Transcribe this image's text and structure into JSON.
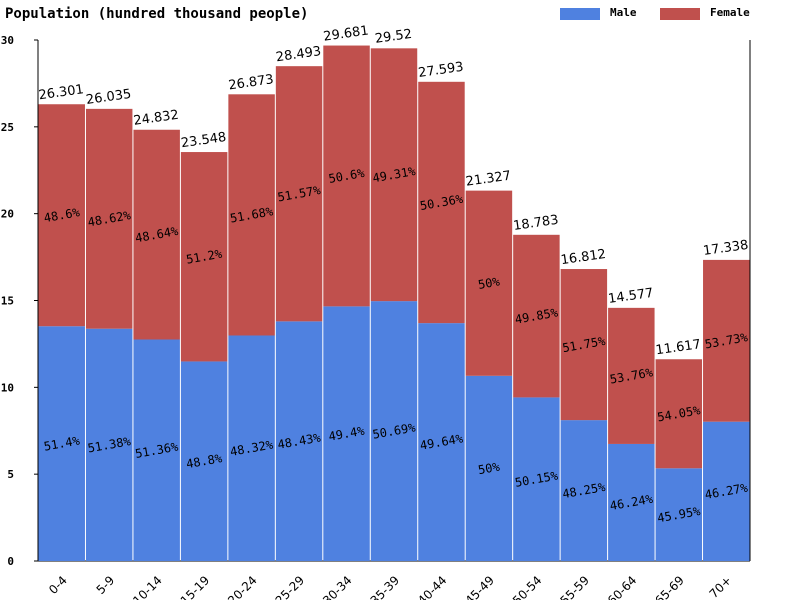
{
  "chart_data": {
    "type": "stacked_bar",
    "title": "Population (hundred thousand people)",
    "categories": [
      "0-4",
      "5-9",
      "10-14",
      "15-19",
      "20-24",
      "25-29",
      "30-34",
      "35-39",
      "40-44",
      "45-49",
      "50-54",
      "55-59",
      "60-64",
      "65-69",
      "70+"
    ],
    "series": [
      {
        "name": "Male",
        "color": "#4f81e0",
        "values": [
          13.519,
          13.377,
          12.754,
          11.491,
          12.985,
          13.799,
          14.662,
          14.964,
          13.697,
          10.664,
          9.42,
          8.112,
          6.74,
          5.338,
          8.022
        ],
        "share_labels": [
          "51.4%",
          "51.38%",
          "51.36%",
          "48.8%",
          "48.32%",
          "48.43%",
          "49.4%",
          "50.69%",
          "49.64%",
          "50%",
          "50.15%",
          "48.25%",
          "46.24%",
          "45.95%",
          "46.27%"
        ]
      },
      {
        "name": "Female",
        "color": "#c0504d",
        "values": [
          12.782,
          12.658,
          12.078,
          12.057,
          13.888,
          14.694,
          15.019,
          14.556,
          13.896,
          10.663,
          9.363,
          8.7,
          7.837,
          6.279,
          9.316
        ],
        "share_labels": [
          "48.6%",
          "48.62%",
          "48.64%",
          "51.2%",
          "51.68%",
          "51.57%",
          "50.6%",
          "49.31%",
          "50.36%",
          "50%",
          "49.85%",
          "51.75%",
          "53.76%",
          "54.05%",
          "53.73%"
        ]
      }
    ],
    "totals": [
      26.301,
      26.035,
      24.832,
      23.548,
      26.873,
      28.493,
      29.681,
      29.52,
      27.593,
      21.327,
      18.783,
      16.812,
      14.577,
      11.617,
      17.338
    ],
    "ylim": [
      0,
      30
    ],
    "yticks": [
      0,
      5,
      10,
      15,
      20,
      25,
      30
    ],
    "grid": false
  }
}
